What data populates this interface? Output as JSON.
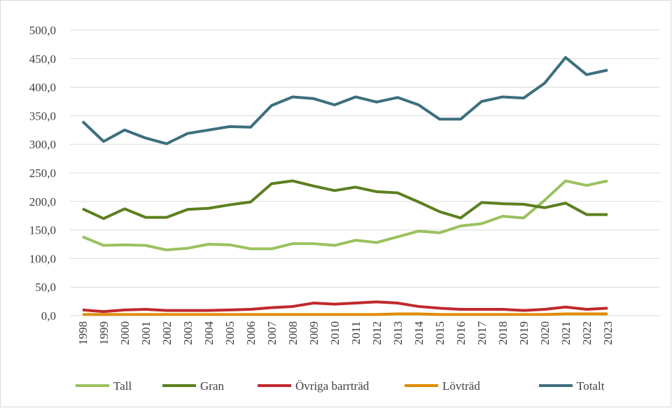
{
  "chart_data": {
    "type": "line",
    "categories": [
      "1998",
      "1999",
      "2000",
      "2001",
      "2002",
      "2003",
      "2004",
      "2005",
      "2006",
      "2007",
      "2008",
      "2009",
      "2010",
      "2011",
      "2012",
      "2013",
      "2014",
      "2015",
      "2016",
      "2017",
      "2018",
      "2019",
      "2020",
      "2021",
      "2022",
      "2023"
    ],
    "series": [
      {
        "name": "Tall",
        "color": "#9bc15e",
        "values": [
          138,
          123,
          124,
          123,
          115,
          118,
          125,
          124,
          117,
          117,
          126,
          126,
          123,
          132,
          128,
          138,
          148,
          145,
          157,
          161,
          174,
          171,
          202,
          236,
          228,
          236
        ]
      },
      {
        "name": "Gran",
        "color": "#5c7f1f",
        "values": [
          187,
          170,
          187,
          172,
          172,
          186,
          188,
          194,
          199,
          231,
          236,
          227,
          219,
          225,
          217,
          215,
          199,
          182,
          171,
          198,
          196,
          195,
          189,
          197,
          177,
          177
        ]
      },
      {
        "name": "Övriga barrträd",
        "color": "#c0282c",
        "values": [
          10,
          7,
          10,
          11,
          9,
          9,
          9,
          10,
          11,
          14,
          16,
          22,
          20,
          22,
          24,
          22,
          16,
          13,
          11,
          11,
          11,
          9,
          11,
          15,
          11,
          13
        ]
      },
      {
        "name": "Lövträd",
        "color": "#e08c00",
        "values": [
          2,
          2,
          2,
          2,
          2,
          2,
          2,
          2,
          2,
          2,
          2,
          2,
          2,
          2,
          2,
          3,
          3,
          2,
          2,
          2,
          2,
          2,
          2,
          3,
          3,
          3
        ]
      },
      {
        "name": "Totalt",
        "color": "#3d6f7d",
        "values": [
          340,
          305,
          325,
          311,
          301,
          319,
          325,
          331,
          330,
          368,
          383,
          380,
          369,
          383,
          374,
          382,
          369,
          344,
          344,
          375,
          383,
          381,
          407,
          452,
          422,
          430
        ]
      }
    ],
    "ylim": [
      0,
      500
    ],
    "yticks": [
      {
        "value": 0,
        "label": "0,0"
      },
      {
        "value": 50,
        "label": "50,0"
      },
      {
        "value": 100,
        "label": "100,0"
      },
      {
        "value": 150,
        "label": "150,0"
      },
      {
        "value": 200,
        "label": "200,0"
      },
      {
        "value": 250,
        "label": "250,0"
      },
      {
        "value": 300,
        "label": "300,0"
      },
      {
        "value": 350,
        "label": "350,0"
      },
      {
        "value": 400,
        "label": "400,0"
      },
      {
        "value": 450,
        "label": "450,0"
      },
      {
        "value": 500,
        "label": "500,0"
      }
    ],
    "grid": true,
    "legend": "bottom"
  }
}
